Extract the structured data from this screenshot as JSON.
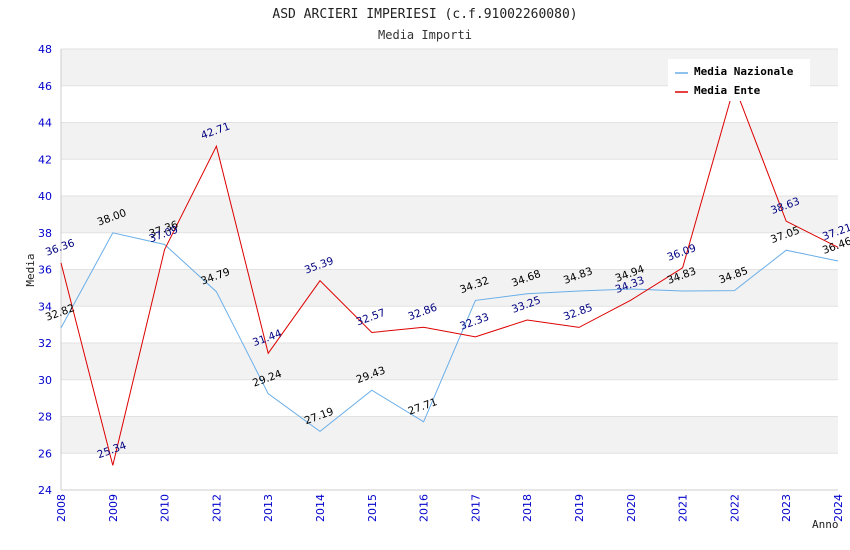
{
  "chart_data": {
    "type": "line",
    "title": "ASD ARCIERI IMPERIESI (c.f.91002260080)",
    "subtitle": "Media Importi",
    "xlabel": "Anno",
    "ylabel": "Media",
    "ylim": [
      24,
      48
    ],
    "yticks": [
      24,
      26,
      28,
      30,
      32,
      34,
      36,
      38,
      40,
      42,
      44,
      46,
      48
    ],
    "categories": [
      "2008",
      "2009",
      "2010",
      "2012",
      "2013",
      "2014",
      "2015",
      "2016",
      "2017",
      "2018",
      "2019",
      "2020",
      "2021",
      "2022",
      "2023",
      "2024"
    ],
    "grid": true,
    "legend_position": "top-right",
    "series": [
      {
        "name": "Media Nazionale",
        "color": "#6aaee8",
        "label_color": "#000000",
        "values": [
          32.82,
          38.0,
          37.36,
          34.79,
          29.24,
          27.19,
          29.43,
          27.71,
          34.32,
          34.68,
          34.83,
          34.94,
          34.83,
          34.85,
          37.05,
          36.46
        ],
        "labels": [
          "32.82",
          "38.00",
          "37.36",
          "34.79",
          "29.24",
          "27.19",
          "29.43",
          "27.71",
          "34.32",
          "34.68",
          "34.83",
          "34.94",
          "34.83",
          "34.85",
          "37.05",
          "36.46"
        ]
      },
      {
        "name": "Media Ente",
        "color": "#dd0000",
        "label_color": "#000080",
        "values": [
          36.36,
          25.34,
          37.09,
          42.71,
          31.44,
          35.39,
          32.57,
          32.86,
          32.33,
          33.25,
          32.85,
          34.33,
          36.09,
          46.0,
          38.63,
          37.21
        ],
        "labels": [
          "36.36",
          "25.34",
          "37.09",
          "42.71",
          "31.44",
          "35.39",
          "32.57",
          "32.86",
          "32.33",
          "33.25",
          "32.85",
          "34.33",
          "36.09",
          "",
          "38.63",
          "37.21"
        ]
      }
    ]
  }
}
